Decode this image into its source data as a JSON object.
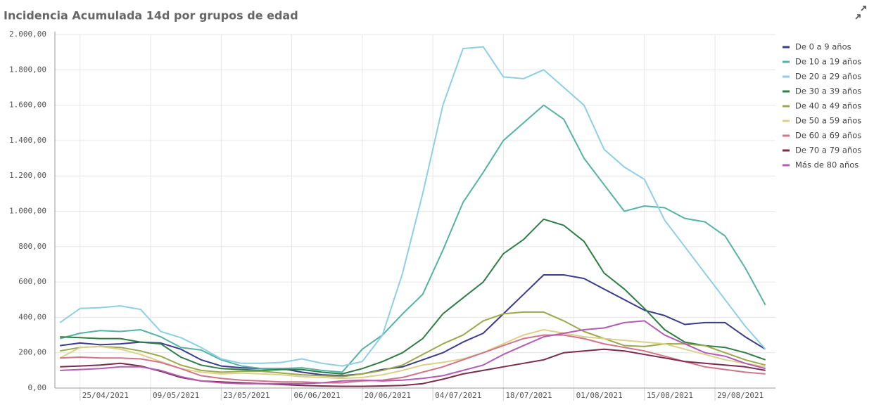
{
  "chart_data": {
    "type": "line",
    "title": "Incidencia Acumulada 14d por grupos de edad",
    "grid": true,
    "legend": "right",
    "x": [
      "21/04/2021",
      "25/04/2021",
      "29/04/2021",
      "03/05/2021",
      "07/05/2021",
      "11/05/2021",
      "15/05/2021",
      "19/05/2021",
      "23/05/2021",
      "27/05/2021",
      "31/05/2021",
      "04/06/2021",
      "08/06/2021",
      "12/06/2021",
      "16/06/2021",
      "20/06/2021",
      "24/06/2021",
      "28/06/2021",
      "02/07/2021",
      "06/07/2021",
      "10/07/2021",
      "14/07/2021",
      "18/07/2021",
      "22/07/2021",
      "26/07/2021",
      "30/07/2021",
      "03/08/2021",
      "07/08/2021",
      "11/08/2021",
      "15/08/2021",
      "19/08/2021",
      "23/08/2021",
      "27/08/2021",
      "31/08/2021",
      "04/09/2021",
      "08/09/2021"
    ],
    "xlim": [
      "20/04/2021",
      "10/09/2021"
    ],
    "xticks": [
      "25/04/2021",
      "09/05/2021",
      "23/05/2021",
      "06/06/2021",
      "20/06/2021",
      "04/07/2021",
      "18/07/2021",
      "01/08/2021",
      "15/08/2021",
      "29/08/2021"
    ],
    "ylim": [
      0,
      2000
    ],
    "yticks": [
      {
        "value": 0,
        "label": "0,00"
      },
      {
        "value": 200,
        "label": "200,00"
      },
      {
        "value": 400,
        "label": "400,00"
      },
      {
        "value": 600,
        "label": "600,00"
      },
      {
        "value": 800,
        "label": "800,00"
      },
      {
        "value": 1000,
        "label": "1.000,00"
      },
      {
        "value": 1200,
        "label": "1.200,00"
      },
      {
        "value": 1400,
        "label": "1.400,00"
      },
      {
        "value": 1600,
        "label": "1.600,00"
      },
      {
        "value": 1800,
        "label": "1.800,00"
      },
      {
        "value": 2000,
        "label": "2.000,00"
      }
    ],
    "series": [
      {
        "name": "De 0 a 9 años",
        "color": "#3b3b8c",
        "values": [
          240,
          255,
          245,
          250,
          260,
          255,
          220,
          160,
          125,
          115,
          110,
          110,
          90,
          75,
          70,
          80,
          105,
          120,
          160,
          200,
          260,
          310,
          420,
          530,
          640,
          640,
          620,
          560,
          500,
          440,
          410,
          360,
          370,
          370,
          290,
          220
        ]
      },
      {
        "name": "De 10 a 19 años",
        "color": "#55b3a1",
        "values": [
          280,
          310,
          325,
          320,
          330,
          290,
          230,
          215,
          160,
          125,
          110,
          110,
          115,
          100,
          90,
          220,
          300,
          420,
          530,
          780,
          1050,
          1220,
          1400,
          1500,
          1600,
          1520,
          1300,
          1150,
          1000,
          1030,
          1020,
          960,
          940,
          860,
          680,
          470
        ]
      },
      {
        "name": "De 20 a 29 años",
        "color": "#8ecfe6",
        "values": [
          370,
          450,
          455,
          465,
          445,
          320,
          285,
          230,
          165,
          140,
          140,
          145,
          165,
          140,
          125,
          150,
          300,
          650,
          1100,
          1600,
          1920,
          1930,
          1760,
          1750,
          1800,
          1700,
          1600,
          1350,
          1250,
          1180,
          950,
          800,
          650,
          500,
          350,
          220
        ]
      },
      {
        "name": "De 30 a 39 años",
        "color": "#2e7d45",
        "values": [
          290,
          285,
          280,
          280,
          260,
          250,
          175,
          130,
          110,
          105,
          100,
          105,
          105,
          90,
          80,
          110,
          150,
          200,
          280,
          420,
          510,
          600,
          760,
          840,
          955,
          920,
          830,
          650,
          560,
          450,
          330,
          260,
          240,
          230,
          200,
          160
        ]
      },
      {
        "name": "De 40 a 49 años",
        "color": "#9ba84b",
        "values": [
          210,
          230,
          235,
          230,
          210,
          180,
          130,
          100,
          90,
          95,
          95,
          85,
          75,
          70,
          65,
          80,
          100,
          130,
          190,
          250,
          300,
          380,
          420,
          430,
          430,
          380,
          320,
          280,
          240,
          235,
          250,
          250,
          240,
          200,
          160,
          130
        ]
      },
      {
        "name": "De 50 a 59 años",
        "color": "#dbd18b",
        "values": [
          170,
          230,
          235,
          220,
          190,
          150,
          110,
          90,
          80,
          85,
          80,
          75,
          65,
          60,
          55,
          60,
          75,
          100,
          130,
          145,
          165,
          200,
          250,
          300,
          330,
          310,
          290,
          280,
          270,
          260,
          250,
          220,
          190,
          160,
          140,
          120
        ]
      },
      {
        "name": "De 60 a 69 años",
        "color": "#d0758a",
        "values": [
          170,
          175,
          170,
          170,
          165,
          145,
          110,
          70,
          55,
          45,
          40,
          35,
          35,
          30,
          30,
          40,
          45,
          60,
          90,
          120,
          160,
          200,
          240,
          280,
          300,
          300,
          280,
          250,
          230,
          210,
          180,
          150,
          120,
          105,
          90,
          80
        ]
      },
      {
        "name": "De 70 a 79 años",
        "color": "#7b2b4b",
        "values": [
          120,
          125,
          130,
          140,
          125,
          95,
          60,
          40,
          35,
          30,
          25,
          20,
          15,
          12,
          10,
          10,
          12,
          15,
          25,
          50,
          80,
          100,
          120,
          140,
          160,
          200,
          210,
          220,
          210,
          190,
          170,
          150,
          140,
          130,
          120,
          100
        ]
      },
      {
        "name": "Más de 80 años",
        "color": "#b45cb4",
        "values": [
          100,
          105,
          110,
          120,
          120,
          100,
          65,
          40,
          30,
          25,
          25,
          25,
          25,
          30,
          40,
          45,
          40,
          45,
          55,
          70,
          100,
          130,
          190,
          240,
          290,
          310,
          330,
          340,
          370,
          380,
          300,
          250,
          200,
          180,
          140,
          110
        ]
      }
    ]
  }
}
